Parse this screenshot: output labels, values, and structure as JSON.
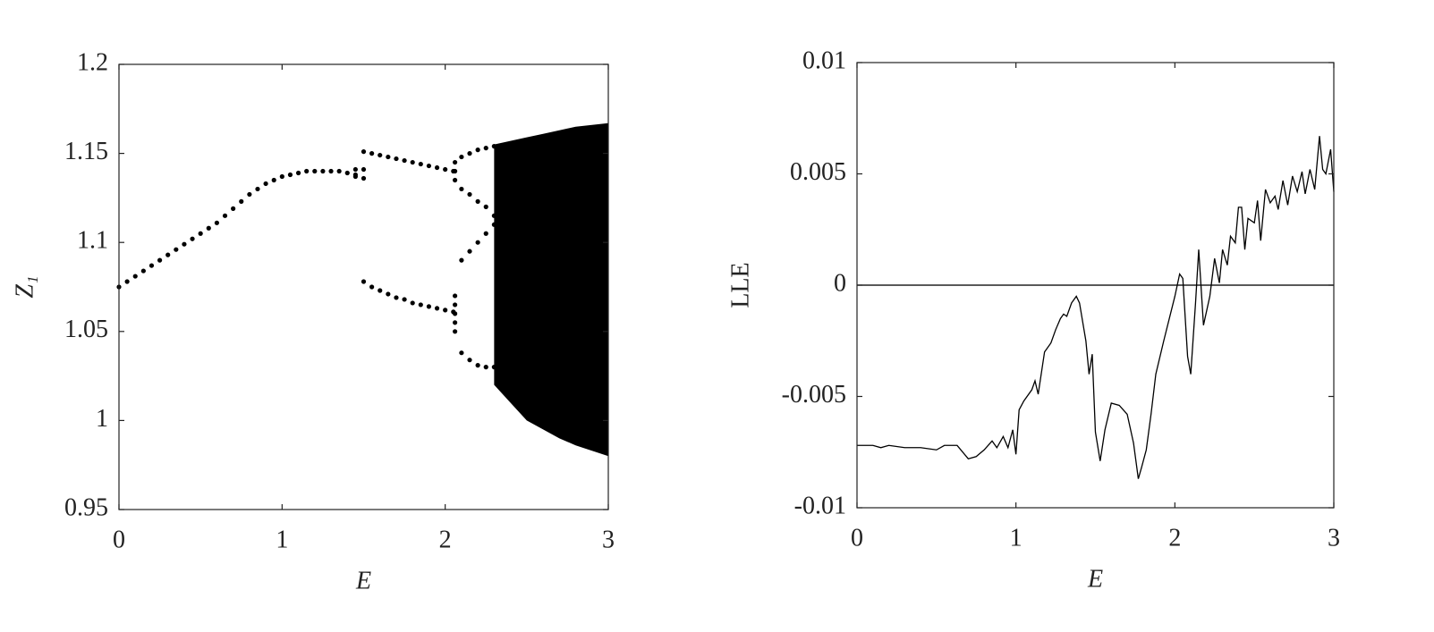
{
  "chart_data": [
    {
      "type": "scatter",
      "xlabel": "E",
      "ylabel": "Z₁",
      "color": "#000000",
      "xlim": [
        0,
        3
      ],
      "ylim": [
        0.95,
        1.2
      ],
      "xticks": [
        0,
        1,
        2,
        3
      ],
      "yticks": [
        0.95,
        1,
        1.05,
        1.1,
        1.15,
        1.2
      ],
      "x": [
        0,
        0.05,
        0.1,
        0.15,
        0.2,
        0.25,
        0.3,
        0.35,
        0.4,
        0.45,
        0.5,
        0.55,
        0.6,
        0.65,
        0.7,
        0.75,
        0.8,
        0.85,
        0.9,
        0.95,
        1.0,
        1.05,
        1.1,
        1.15,
        1.2,
        1.25,
        1.3,
        1.35,
        1.4,
        1.45,
        1.45,
        1.5,
        1.5,
        1.45,
        1.5,
        1.55,
        1.6,
        1.65,
        1.7,
        1.75,
        1.8,
        1.85,
        1.9,
        1.95,
        2.0,
        2.05,
        1.5,
        1.55,
        1.6,
        1.65,
        1.7,
        1.75,
        1.8,
        1.85,
        1.9,
        1.95,
        2.0,
        2.05,
        2.06,
        2.06,
        2.06,
        2.06,
        2.06,
        2.06,
        2.06,
        2.06,
        2.1,
        2.15,
        2.2,
        2.25,
        2.3,
        2.1,
        2.15,
        2.2,
        2.25,
        2.3,
        2.1,
        2.15,
        2.2,
        2.25,
        2.3,
        2.1,
        2.15,
        2.2,
        2.25,
        2.3
      ],
      "values": [
        1.075,
        1.078,
        1.081,
        1.084,
        1.087,
        1.09,
        1.093,
        1.096,
        1.099,
        1.102,
        1.105,
        1.108,
        1.111,
        1.115,
        1.119,
        1.123,
        1.127,
        1.13,
        1.133,
        1.135,
        1.137,
        1.138,
        1.139,
        1.14,
        1.14,
        1.14,
        1.14,
        1.14,
        1.139,
        1.138,
        1.141,
        1.141,
        1.136,
        1.137,
        1.151,
        1.15,
        1.149,
        1.148,
        1.147,
        1.146,
        1.145,
        1.144,
        1.143,
        1.142,
        1.141,
        1.14,
        1.078,
        1.075,
        1.073,
        1.071,
        1.069,
        1.068,
        1.066,
        1.065,
        1.064,
        1.063,
        1.062,
        1.061,
        1.05,
        1.055,
        1.06,
        1.065,
        1.07,
        1.135,
        1.14,
        1.145,
        1.148,
        1.15,
        1.152,
        1.153,
        1.154,
        1.13,
        1.127,
        1.123,
        1.12,
        1.115,
        1.09,
        1.095,
        1.1,
        1.105,
        1.11,
        1.038,
        1.034,
        1.031,
        1.03,
        1.03
      ],
      "band": {
        "x": [
          2.3,
          2.4,
          2.5,
          2.6,
          2.7,
          2.8,
          2.9,
          3.0
        ],
        "low": [
          1.02,
          1.01,
          1.0,
          0.995,
          0.99,
          0.986,
          0.983,
          0.98
        ],
        "high": [
          1.155,
          1.157,
          1.159,
          1.161,
          1.163,
          1.165,
          1.166,
          1.167
        ]
      }
    },
    {
      "type": "line",
      "xlabel": "E",
      "ylabel": "LLE",
      "color": "#000000",
      "reference_line": 0,
      "xlim": [
        0,
        3
      ],
      "ylim": [
        -0.01,
        0.01
      ],
      "xticks": [
        0,
        1,
        2,
        3
      ],
      "yticks": [
        -0.01,
        -0.005,
        0,
        0.005,
        0.01
      ],
      "x": [
        0,
        0.1,
        0.15,
        0.2,
        0.3,
        0.4,
        0.5,
        0.55,
        0.63,
        0.7,
        0.75,
        0.8,
        0.85,
        0.88,
        0.92,
        0.95,
        0.98,
        1.0,
        1.02,
        1.05,
        1.1,
        1.12,
        1.14,
        1.18,
        1.22,
        1.25,
        1.28,
        1.3,
        1.32,
        1.35,
        1.38,
        1.4,
        1.44,
        1.46,
        1.48,
        1.5,
        1.53,
        1.56,
        1.6,
        1.65,
        1.7,
        1.74,
        1.77,
        1.79,
        1.82,
        1.85,
        1.88,
        1.93,
        2.0,
        2.03,
        2.05,
        2.08,
        2.1,
        2.13,
        2.15,
        2.18,
        2.22,
        2.25,
        2.28,
        2.3,
        2.33,
        2.35,
        2.38,
        2.4,
        2.42,
        2.44,
        2.46,
        2.5,
        2.52,
        2.54,
        2.57,
        2.6,
        2.63,
        2.65,
        2.68,
        2.71,
        2.74,
        2.77,
        2.8,
        2.82,
        2.85,
        2.88,
        2.91,
        2.93,
        2.95,
        2.98,
        3.0
      ],
      "values": [
        -0.0072,
        -0.0072,
        -0.0073,
        -0.0072,
        -0.0073,
        -0.0073,
        -0.0074,
        -0.0072,
        -0.0072,
        -0.0078,
        -0.0077,
        -0.0074,
        -0.007,
        -0.0073,
        -0.0068,
        -0.0073,
        -0.0065,
        -0.0076,
        -0.0056,
        -0.0052,
        -0.0047,
        -0.0043,
        -0.0049,
        -0.003,
        -0.0026,
        -0.002,
        -0.0015,
        -0.0013,
        -0.0014,
        -0.0008,
        -0.0005,
        -0.0008,
        -0.0025,
        -0.004,
        -0.0031,
        -0.0066,
        -0.0079,
        -0.0065,
        -0.0053,
        -0.0054,
        -0.0058,
        -0.0071,
        -0.0087,
        -0.0082,
        -0.0074,
        -0.0058,
        -0.004,
        -0.0025,
        -0.0005,
        0.0005,
        0.0003,
        -0.0032,
        -0.004,
        -0.0008,
        0.0016,
        -0.0018,
        -0.0005,
        0.0012,
        0.0001,
        0.0016,
        0.0009,
        0.0022,
        0.0019,
        0.0035,
        0.0035,
        0.0016,
        0.003,
        0.0028,
        0.0038,
        0.002,
        0.0043,
        0.0037,
        0.004,
        0.0034,
        0.0047,
        0.0036,
        0.0049,
        0.0042,
        0.0051,
        0.0041,
        0.0052,
        0.0043,
        0.0067,
        0.0052,
        0.005,
        0.0061,
        0.0042
      ]
    }
  ]
}
